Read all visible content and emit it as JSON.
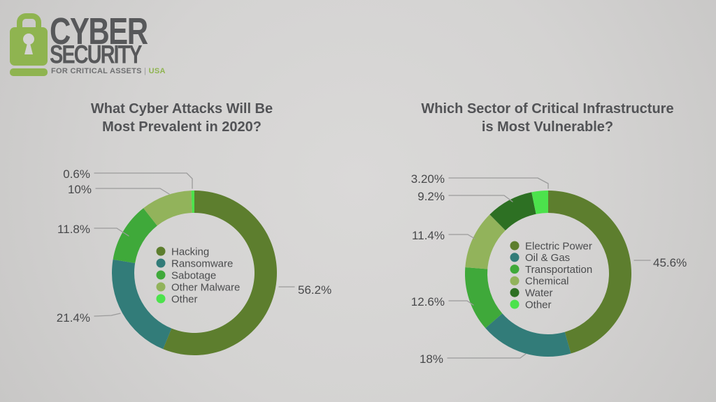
{
  "background_color": "#d3d2d1",
  "logo": {
    "title_line1": "CYBER",
    "title_line2": "SECURITY",
    "tagline": "FOR CRITICAL ASSETS",
    "tagline_separator": "|",
    "tagline_region": "USA",
    "colors": {
      "lock_green": "#8fb450",
      "text_gray": "#57585a",
      "tagline_gray": "#6f7072"
    }
  },
  "chart_data": [
    {
      "type": "pie",
      "subtype": "donut",
      "title": "What Cyber Attacks Will Be Most Prevalent in 2020?",
      "title_lines": [
        "What Cyber Attacks Will Be",
        "Most Prevalent in 2020?"
      ],
      "categories": [
        "Hacking",
        "Ransomware",
        "Sabotage",
        "Other Malware",
        "Other"
      ],
      "values": [
        56.2,
        21.4,
        11.8,
        10,
        0.6
      ],
      "labels": [
        "56.2%",
        "21.4%",
        "11.8%",
        "10%",
        "0.6%"
      ],
      "colors": [
        "#5d7e2e",
        "#327c79",
        "#3fa93a",
        "#92b35b",
        "#4ce24c"
      ],
      "units": "%",
      "start_angle_deg": 0,
      "direction": "clockwise",
      "legend_position": "center"
    },
    {
      "type": "pie",
      "subtype": "donut",
      "title": "Which Sector of Critical Infrastructure is Most Vulnerable?",
      "title_lines": [
        "Which Sector of Critical Infrastructure",
        "is Most Vulnerable?"
      ],
      "categories": [
        "Electric Power",
        "Oil & Gas",
        "Transportation",
        "Chemical",
        "Water",
        "Other"
      ],
      "values": [
        45.6,
        18,
        12.6,
        11.4,
        9.2,
        3.2
      ],
      "labels": [
        "45.6%",
        "18%",
        "12.6%",
        "11.4%",
        "9.2%",
        "3.20%"
      ],
      "colors": [
        "#5d7e2e",
        "#327c79",
        "#3fa93a",
        "#92b35b",
        "#2d7023",
        "#4ce24c"
      ],
      "units": "%",
      "start_angle_deg": 0,
      "direction": "clockwise",
      "legend_position": "center"
    }
  ]
}
